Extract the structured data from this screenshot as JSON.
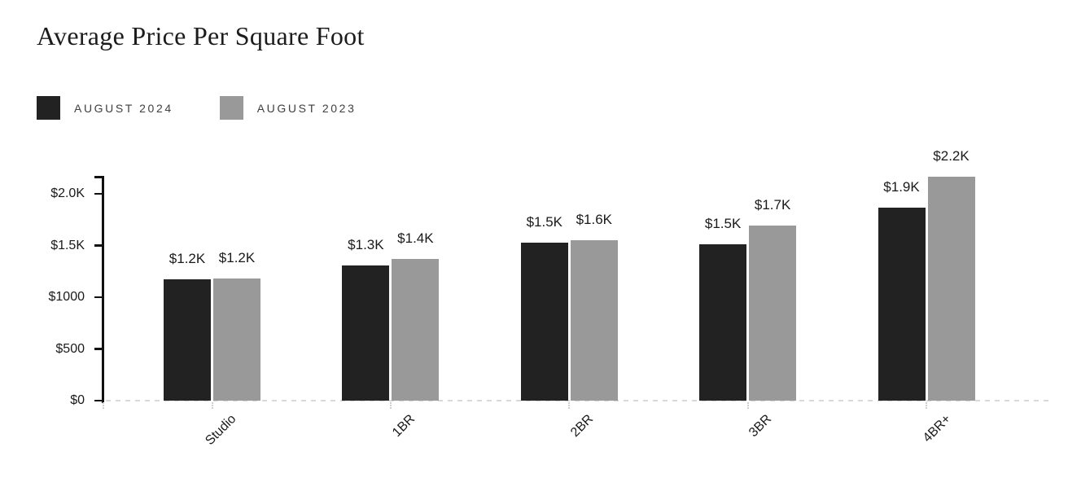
{
  "page": {
    "background": "#ffffff"
  },
  "chart_data": {
    "type": "bar",
    "title": "Average Price Per Square Foot",
    "categories": [
      "Studio",
      "1BR",
      "2BR",
      "3BR",
      "4BR+"
    ],
    "series": [
      {
        "name": "AUGUST 2024",
        "color": "#222222",
        "values": [
          1175,
          1310,
          1530,
          1510,
          1870
        ],
        "value_labels": [
          "$1.2K",
          "$1.3K",
          "$1.5K",
          "$1.5K",
          "$1.9K"
        ]
      },
      {
        "name": "AUGUST 2023",
        "color": "#999999",
        "values": [
          1180,
          1370,
          1555,
          1695,
          2165
        ],
        "value_labels": [
          "$1.2K",
          "$1.4K",
          "$1.6K",
          "$1.7K",
          "$2.2K"
        ]
      }
    ],
    "y_axis": {
      "min": 0,
      "max": 2170,
      "ticks": [
        {
          "value": 0,
          "label": "$0"
        },
        {
          "value": 500,
          "label": "$500"
        },
        {
          "value": 1000,
          "label": "$1000"
        },
        {
          "value": 1500,
          "label": "$1.5K"
        },
        {
          "value": 2000,
          "label": "$2.0K"
        }
      ]
    },
    "x_axis": {
      "label_rotation_deg": -45
    },
    "legend_position": "top-left",
    "grid": false,
    "baseline_style": "dotted"
  },
  "colors": {
    "title": "#1c1c1c",
    "axis": "#111111",
    "tick_label": "#1a1a1a",
    "data_label": "#1a1a1a",
    "legend_label": "#404040",
    "dotted_line": "#d9d9d9"
  }
}
